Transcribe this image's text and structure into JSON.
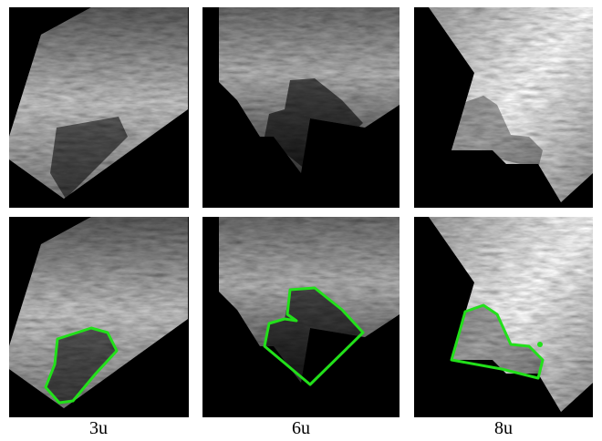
{
  "captions": [
    "3u",
    "6u",
    "8u"
  ]
}
